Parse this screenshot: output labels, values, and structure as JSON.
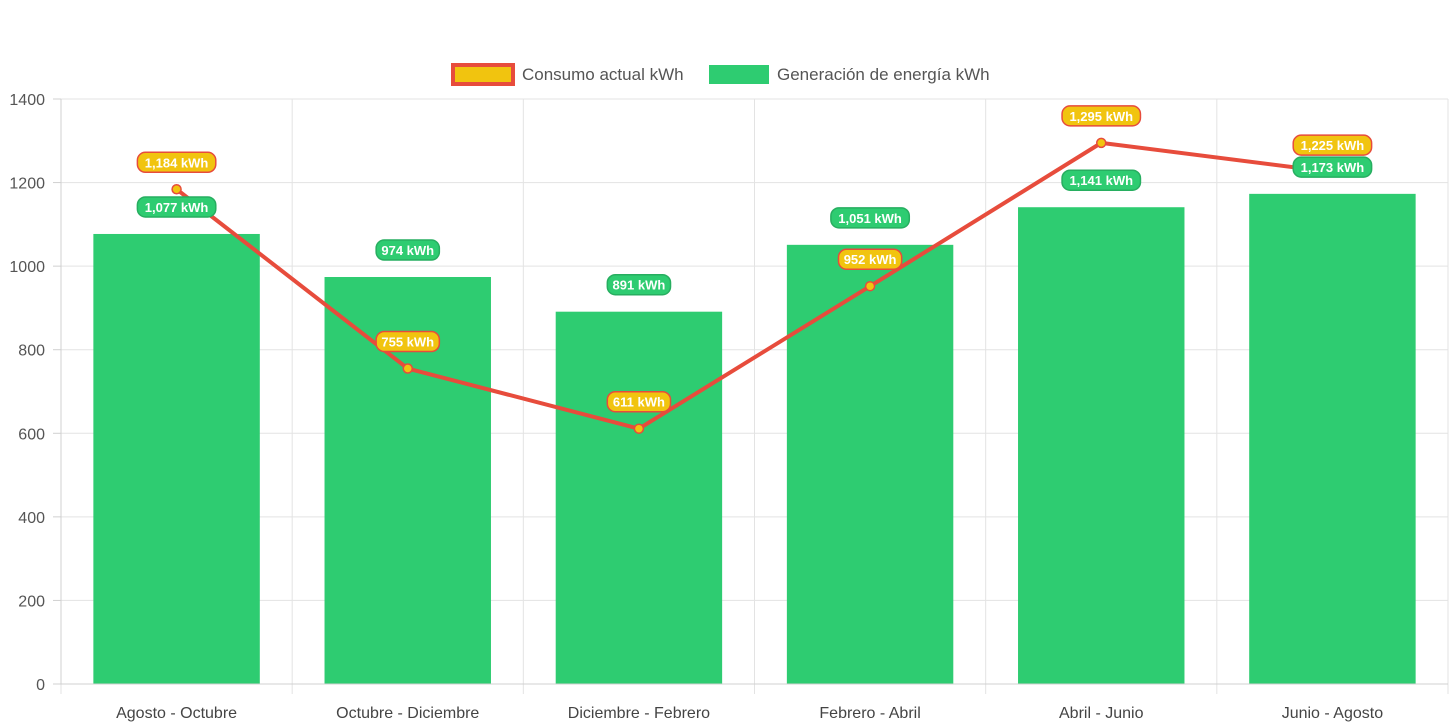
{
  "chart_data": {
    "type": "bar",
    "categories": [
      "Agosto - Octubre",
      "Octubre - Diciembre",
      "Diciembre - Febrero",
      "Febrero - Abril",
      "Abril - Junio",
      "Junio - Agosto"
    ],
    "series": [
      {
        "name": "Consumo actual kWh",
        "type": "line",
        "values": [
          1184,
          755,
          611,
          952,
          1295,
          1225
        ],
        "labels": [
          "1,184 kWh",
          "755 kWh",
          "611 kWh",
          "952 kWh",
          "1,295 kWh",
          "1,225 kWh"
        ],
        "color": "#e74c3c",
        "fill": "#f1c40f"
      },
      {
        "name": "Generación de energía kWh",
        "type": "bar",
        "values": [
          1077,
          974,
          891,
          1051,
          1141,
          1173
        ],
        "labels": [
          "1,077 kWh",
          "974 kWh",
          "891 kWh",
          "1,051 kWh",
          "1,141 kWh",
          "1,173 kWh"
        ],
        "color": "#2ecc71"
      }
    ],
    "ylim": [
      0,
      1400
    ],
    "yticks": [
      "0",
      "200",
      "400",
      "600",
      "800",
      "1000",
      "1200",
      "1400"
    ],
    "grid": true,
    "legend_position": "top"
  }
}
